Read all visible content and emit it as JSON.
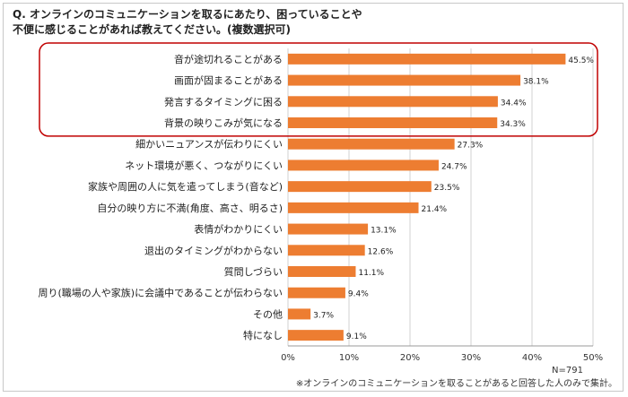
{
  "title": {
    "line1": "Q. オンラインのコミュニケーションを取るにあたり、困っていることや",
    "line2": "不便に感じることがあれば教えてください。(複数選択可)"
  },
  "notes": {
    "n": "N=791",
    "footnote": "※オンラインのコミュニケーションを取ることがあると回答した人のみで集計。"
  },
  "colors": {
    "bar": "#ED7D31",
    "highlight": "#C00000",
    "grid": "#d0d0d0"
  },
  "chart_data": {
    "type": "bar",
    "orientation": "horizontal",
    "categories": [
      "音が途切れることがある",
      "画面が固まることがある",
      "発言するタイミングに困る",
      "背景の映りこみが気になる",
      "細かいニュアンスが伝わりにくい",
      "ネット環境が悪く、つながりにくい",
      "家族や周囲の人に気を遣ってしまう(音など)",
      "自分の映り方に不満(角度、高さ、明るさ)",
      "表情がわかりにくい",
      "退出のタイミングがわからない",
      "質問しづらい",
      "周り(職場の人や家族)に会議中であることが伝わらない",
      "その他",
      "特になし"
    ],
    "values": [
      45.5,
      38.1,
      34.4,
      34.3,
      27.3,
      24.7,
      23.5,
      21.4,
      13.1,
      12.6,
      11.1,
      9.4,
      3.7,
      9.1
    ],
    "value_labels": [
      "45.5%",
      "38.1%",
      "34.4%",
      "34.3%",
      "27.3%",
      "24.7%",
      "23.5%",
      "21.4%",
      "13.1%",
      "12.6%",
      "11.1%",
      "9.4%",
      "3.7%",
      "9.1%"
    ],
    "xlim": [
      0,
      50
    ],
    "xticks": [
      "0%",
      "10%",
      "20%",
      "30%",
      "40%",
      "50%"
    ],
    "highlighted_count": 4,
    "grid": true
  }
}
